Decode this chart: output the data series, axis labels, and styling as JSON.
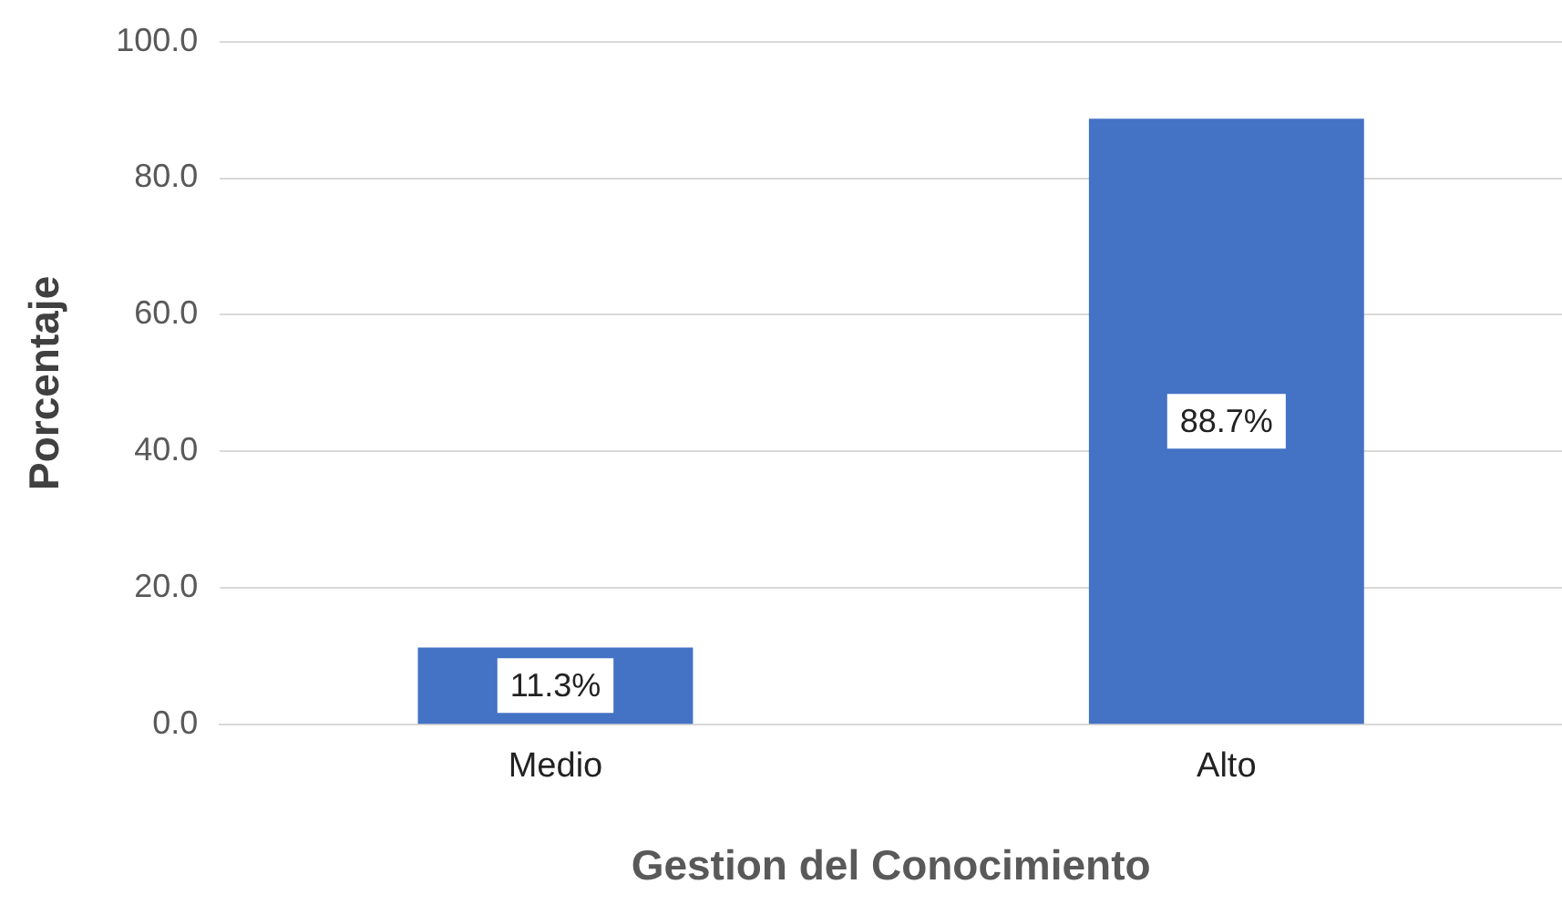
{
  "chart_data": {
    "type": "bar",
    "xlabel": "Gestion del Conocimiento",
    "ylabel": "Porcentaje",
    "categories": [
      "Medio",
      "Alto"
    ],
    "values": [
      11.3,
      88.7
    ],
    "color": "#4472c4",
    "value_labels": [
      "11.3%",
      "88.7%"
    ],
    "ylim": [
      0,
      100
    ],
    "yticks": [
      {
        "value": 0,
        "label": "0.0"
      },
      {
        "value": 20,
        "label": "20.0"
      },
      {
        "value": 40,
        "label": "40.0"
      },
      {
        "value": 60,
        "label": "60.0"
      },
      {
        "value": 80,
        "label": "80.0"
      },
      {
        "value": 100,
        "label": "100.0"
      }
    ],
    "grid": "y",
    "legend": false
  }
}
